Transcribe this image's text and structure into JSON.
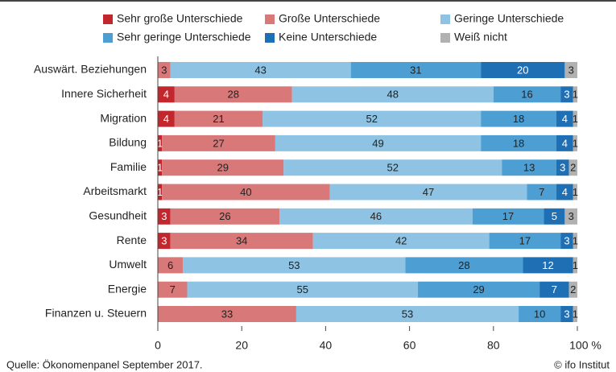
{
  "chart_data": {
    "type": "stacked-bar",
    "categories": [
      "Auswärt. Beziehungen",
      "Innere Sicherheit",
      "Migration",
      "Bildung",
      "Familie",
      "Arbeitsmarkt",
      "Gesundheit",
      "Rente",
      "Umwelt",
      "Energie",
      "Finanzen u. Steuern"
    ],
    "series": [
      {
        "name": "Sehr große Unterschiede",
        "color": "#c1272d",
        "values": [
          0,
          4,
          4,
          1,
          1,
          1,
          3,
          3,
          0,
          0,
          0
        ]
      },
      {
        "name": "Große Unterschiede",
        "color": "#d87878",
        "values": [
          3,
          28,
          21,
          27,
          29,
          40,
          26,
          34,
          6,
          7,
          33
        ]
      },
      {
        "name": "Geringe Unterschiede",
        "color": "#8ec3e3",
        "values": [
          43,
          48,
          52,
          49,
          52,
          47,
          46,
          42,
          53,
          55,
          53
        ]
      },
      {
        "name": "Sehr geringe Unterschiede",
        "color": "#4d9fd3",
        "values": [
          31,
          16,
          18,
          18,
          13,
          7,
          17,
          17,
          28,
          29,
          10
        ]
      },
      {
        "name": "Keine Unterschiede",
        "color": "#1e6fb4",
        "values": [
          20,
          3,
          4,
          4,
          3,
          4,
          5,
          3,
          12,
          7,
          3
        ]
      },
      {
        "name": "Weiß nicht",
        "color": "#b1b1b1",
        "values": [
          3,
          1,
          1,
          1,
          2,
          1,
          3,
          1,
          1,
          2,
          1
        ]
      }
    ],
    "xlim": [
      0,
      100
    ],
    "xticks": [
      0,
      20,
      40,
      60,
      80,
      {
        "value": 100,
        "label": "100 %"
      }
    ],
    "source": "Quelle: Ökonomenpanel September 2017.",
    "credit": "© ifo Institut"
  }
}
